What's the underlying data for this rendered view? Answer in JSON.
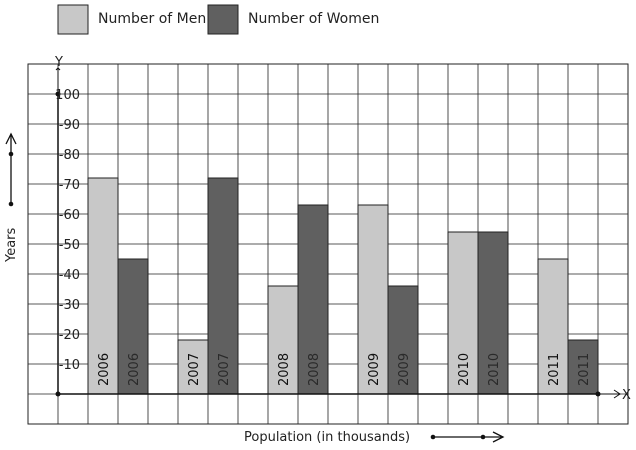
{
  "chart_data": {
    "type": "bar",
    "categories": [
      "2006",
      "2007",
      "2008",
      "2009",
      "2010",
      "2011"
    ],
    "series": [
      {
        "name": "Number of Men",
        "values": [
          72,
          18,
          36,
          63,
          54,
          45
        ],
        "color": "#c8c8c8"
      },
      {
        "name": "Number of Women",
        "values": [
          45,
          72,
          63,
          36,
          54,
          18
        ],
        "color": "#606060"
      }
    ],
    "yticks": [
      "-10",
      "-20",
      "-30",
      "-40",
      "-50",
      "-60",
      "-70",
      "-80",
      "-90",
      "100"
    ],
    "ylim": [
      0,
      110
    ],
    "xlabel": "Population (in thousands)",
    "ylabel": "Years",
    "x_axis_letter": "X",
    "y_axis_letter": "Y",
    "grid": true,
    "legend": "top-left"
  }
}
